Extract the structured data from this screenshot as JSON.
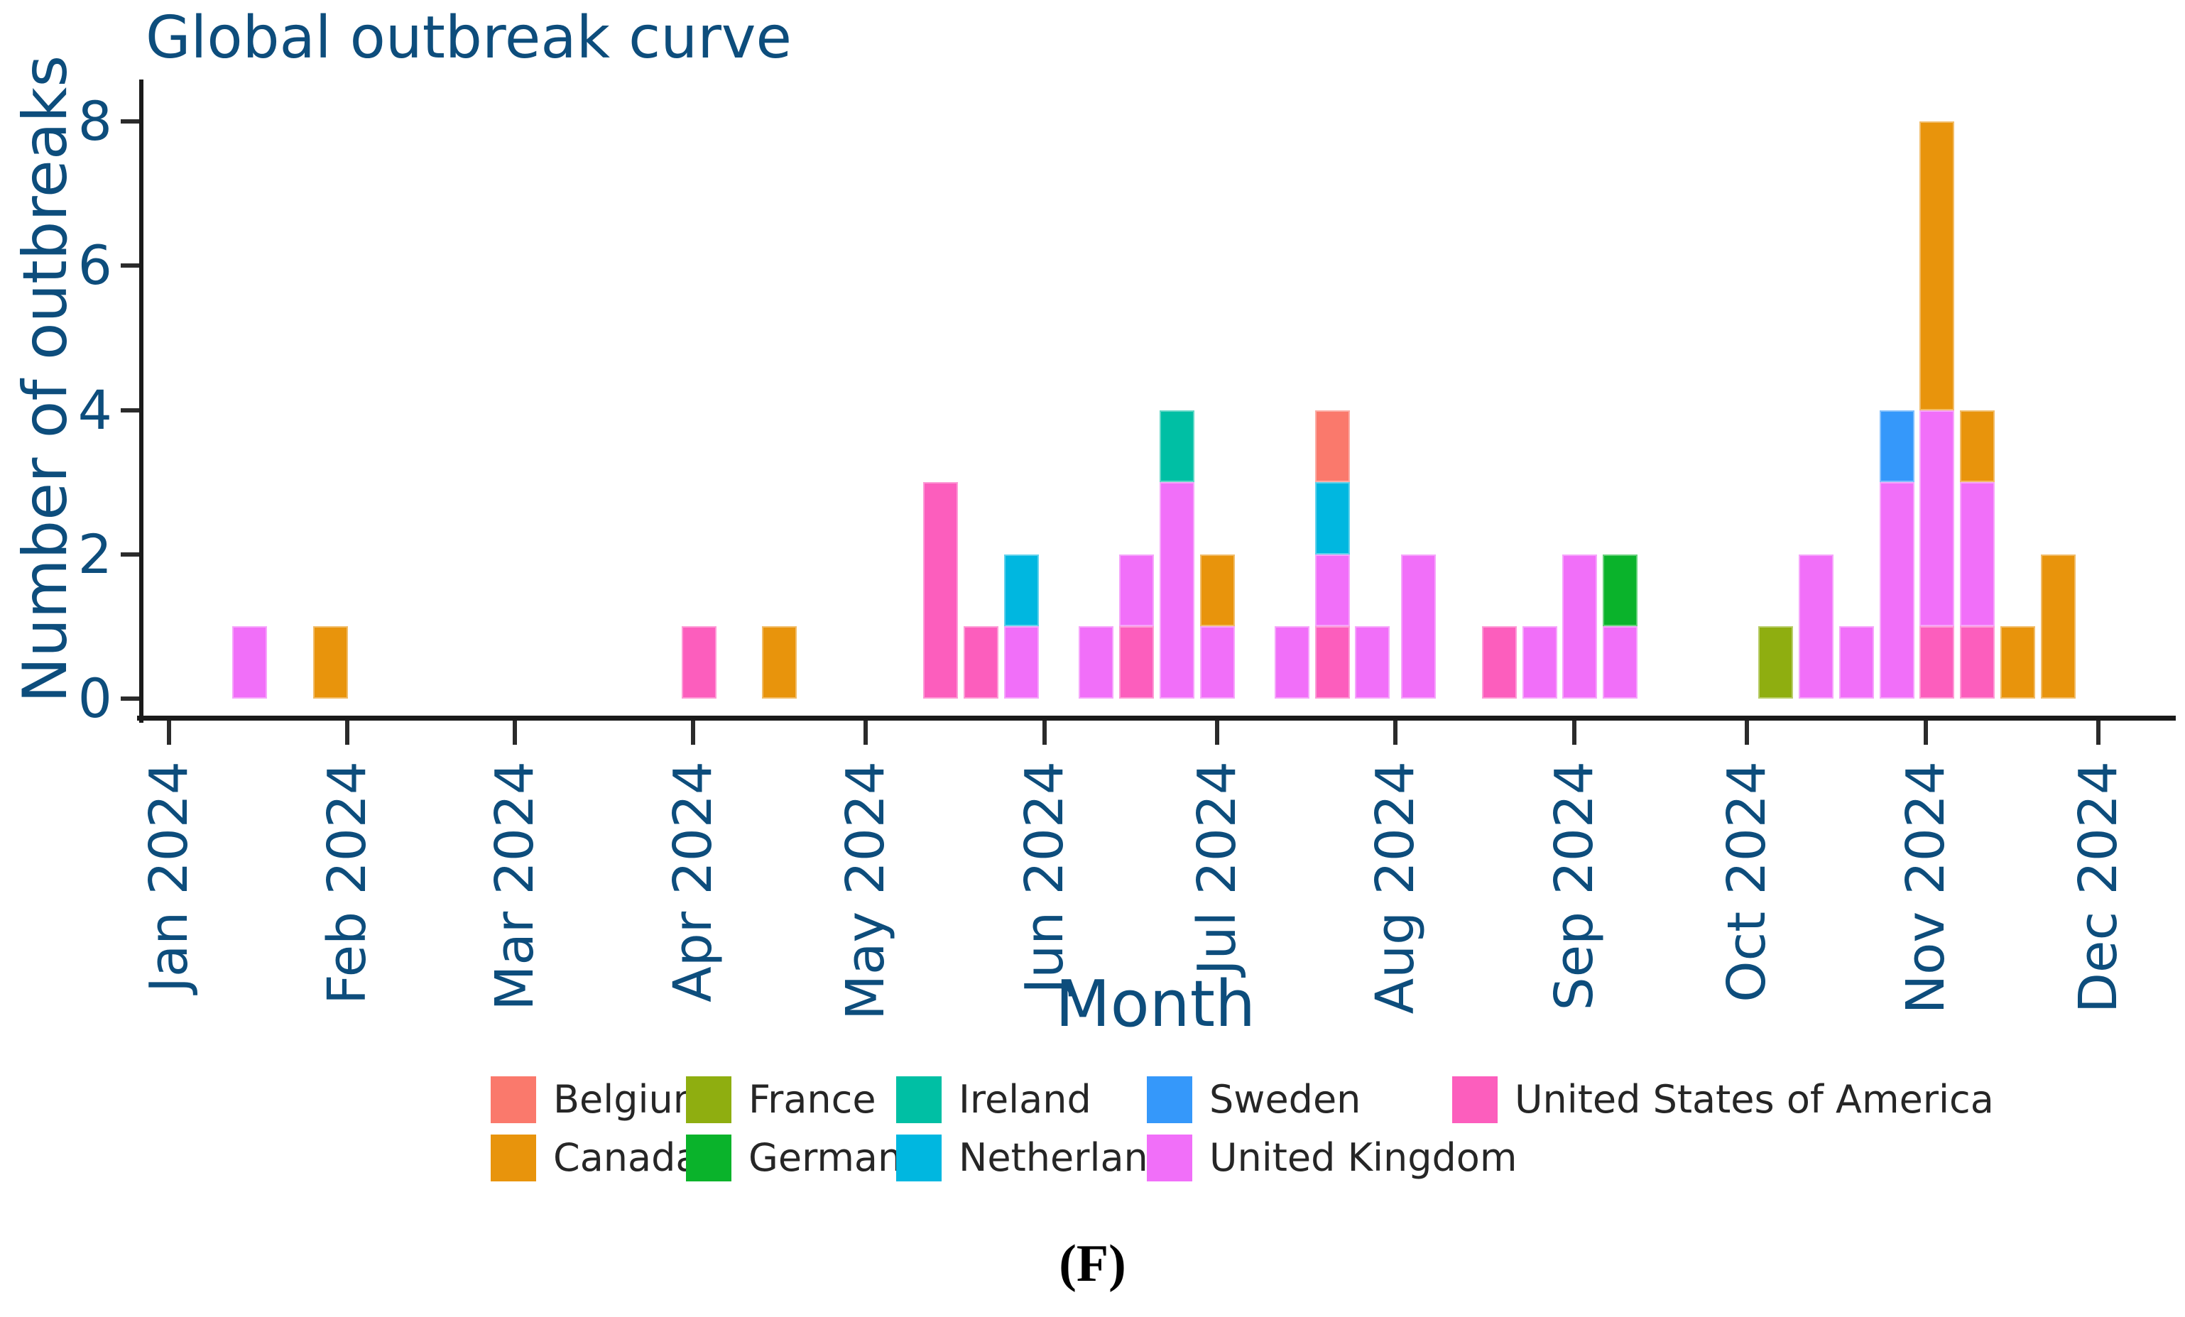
{
  "figure": {
    "title": "Global outbreak curve",
    "x_axis_title": "Month",
    "y_axis_title": "Number of outbreaks",
    "caption": "(F)",
    "text_color": "#0D4D7C"
  },
  "chart_data": {
    "type": "bar",
    "stacked": true,
    "time_unit": "week",
    "title": "Global outbreak curve",
    "xlabel": "Month",
    "ylabel": "Number of outbreaks",
    "ylim": [
      0,
      8
    ],
    "y_ticks": [
      0,
      2,
      4,
      6,
      8
    ],
    "x_ticks": [
      {
        "label": "Jan 2024",
        "day": 0
      },
      {
        "label": "Feb 2024",
        "day": 31
      },
      {
        "label": "Mar 2024",
        "day": 60
      },
      {
        "label": "Apr 2024",
        "day": 91
      },
      {
        "label": "May 2024",
        "day": 121
      },
      {
        "label": "Jun 2024",
        "day": 152
      },
      {
        "label": "Jul 2024",
        "day": 182
      },
      {
        "label": "Aug 2024",
        "day": 213
      },
      {
        "label": "Sep 2024",
        "day": 244
      },
      {
        "label": "Oct 2024",
        "day": 274
      },
      {
        "label": "Nov 2024",
        "day": 305
      },
      {
        "label": "Dec 2024",
        "day": 335
      }
    ],
    "colors": {
      "Belgium": "#FA796C",
      "Canada": "#E8940C",
      "France": "#8FAE10",
      "Germany": "#0AB32B",
      "Ireland": "#00BFA4",
      "Netherlands": "#00B7E0",
      "Sweden": "#3598FA",
      "United Kingdom": "#F16FF9",
      "United States of America": "#FC5EBD"
    },
    "legend_rows": [
      [
        "Belgium",
        "France",
        "Ireland",
        "Sweden",
        "United States of America"
      ],
      [
        "Canada",
        "Germany",
        "Netherlands",
        "United Kingdom"
      ]
    ],
    "bars": [
      {
        "day": 14,
        "segments": [
          {
            "country": "United Kingdom",
            "value": 1
          }
        ]
      },
      {
        "day": 28,
        "segments": [
          {
            "country": "Canada",
            "value": 1
          }
        ]
      },
      {
        "day": 92,
        "segments": [
          {
            "country": "United States of America",
            "value": 1
          }
        ]
      },
      {
        "day": 106,
        "segments": [
          {
            "country": "Canada",
            "value": 1
          }
        ]
      },
      {
        "day": 134,
        "segments": [
          {
            "country": "United States of America",
            "value": 3
          }
        ]
      },
      {
        "day": 141,
        "segments": [
          {
            "country": "United States of America",
            "value": 1
          }
        ]
      },
      {
        "day": 148,
        "segments": [
          {
            "country": "United Kingdom",
            "value": 1
          },
          {
            "country": "Netherlands",
            "value": 1
          }
        ]
      },
      {
        "day": 161,
        "segments": [
          {
            "country": "United Kingdom",
            "value": 1
          }
        ]
      },
      {
        "day": 168,
        "segments": [
          {
            "country": "United States of America",
            "value": 1
          },
          {
            "country": "United Kingdom",
            "value": 1
          }
        ]
      },
      {
        "day": 175,
        "segments": [
          {
            "country": "United Kingdom",
            "value": 3
          },
          {
            "country": "Ireland",
            "value": 1
          }
        ]
      },
      {
        "day": 182,
        "segments": [
          {
            "country": "United Kingdom",
            "value": 1
          },
          {
            "country": "Canada",
            "value": 1
          }
        ]
      },
      {
        "day": 195,
        "segments": [
          {
            "country": "United Kingdom",
            "value": 1
          }
        ]
      },
      {
        "day": 202,
        "segments": [
          {
            "country": "United States of America",
            "value": 1
          },
          {
            "country": "United Kingdom",
            "value": 1
          },
          {
            "country": "Netherlands",
            "value": 1
          },
          {
            "country": "Belgium",
            "value": 1
          }
        ]
      },
      {
        "day": 209,
        "segments": [
          {
            "country": "United Kingdom",
            "value": 1
          }
        ]
      },
      {
        "day": 217,
        "segments": [
          {
            "country": "United Kingdom",
            "value": 2
          }
        ]
      },
      {
        "day": 231,
        "segments": [
          {
            "country": "United States of America",
            "value": 1
          }
        ]
      },
      {
        "day": 238,
        "segments": [
          {
            "country": "United Kingdom",
            "value": 1
          }
        ]
      },
      {
        "day": 245,
        "segments": [
          {
            "country": "United Kingdom",
            "value": 2
          }
        ]
      },
      {
        "day": 252,
        "segments": [
          {
            "country": "United Kingdom",
            "value": 1
          },
          {
            "country": "Germany",
            "value": 1
          }
        ]
      },
      {
        "day": 279,
        "segments": [
          {
            "country": "France",
            "value": 1
          }
        ]
      },
      {
        "day": 286,
        "segments": [
          {
            "country": "United Kingdom",
            "value": 2
          }
        ]
      },
      {
        "day": 293,
        "segments": [
          {
            "country": "United Kingdom",
            "value": 1
          }
        ]
      },
      {
        "day": 300,
        "segments": [
          {
            "country": "United Kingdom",
            "value": 3
          },
          {
            "country": "Sweden",
            "value": 1
          }
        ]
      },
      {
        "day": 307,
        "segments": [
          {
            "country": "United States of America",
            "value": 1
          },
          {
            "country": "United Kingdom",
            "value": 3
          },
          {
            "country": "Canada",
            "value": 4
          }
        ]
      },
      {
        "day": 314,
        "segments": [
          {
            "country": "United States of America",
            "value": 1
          },
          {
            "country": "United Kingdom",
            "value": 2
          },
          {
            "country": "Canada",
            "value": 1
          }
        ]
      },
      {
        "day": 321,
        "segments": [
          {
            "country": "Canada",
            "value": 1
          }
        ]
      },
      {
        "day": 328,
        "segments": [
          {
            "country": "Canada",
            "value": 2
          }
        ]
      }
    ]
  }
}
